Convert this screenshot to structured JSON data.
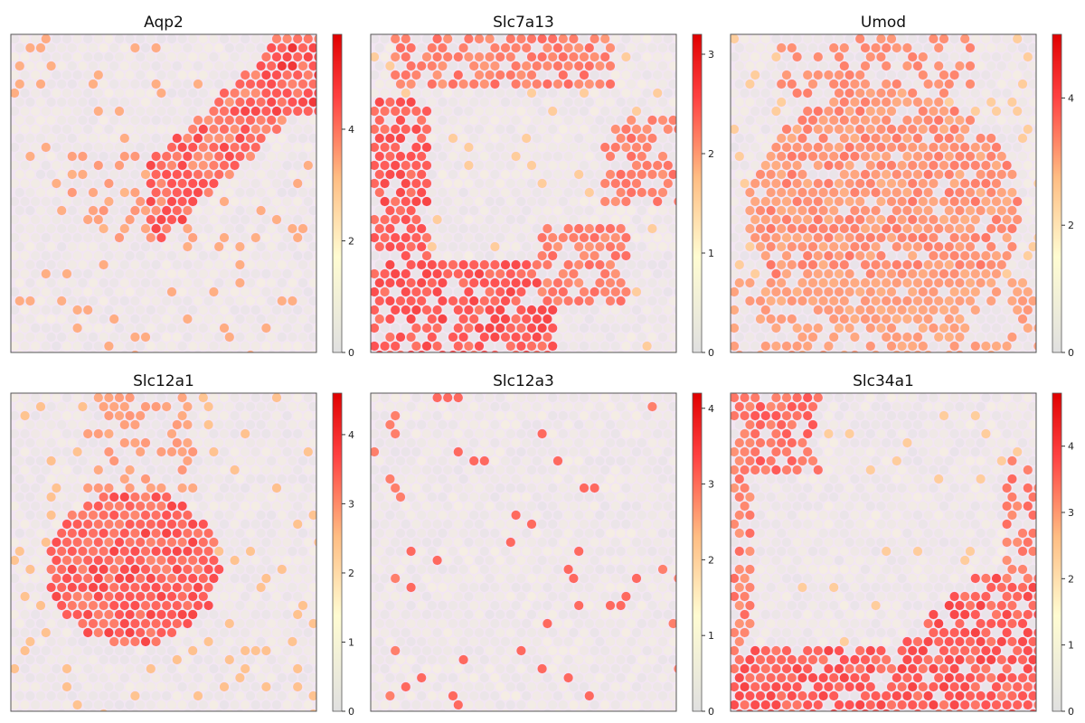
{
  "figure_title": "",
  "colormap": {
    "name": "grey-yellow-orange-red",
    "stops": [
      "#e0e0e0",
      "#fffcd2",
      "#ffbd83",
      "#ff4242",
      "#e00000"
    ]
  },
  "tissue_color": "#f3e6f3",
  "chart_data": [
    {
      "type": "heatmap",
      "title": "Aqp2",
      "colorbar": {
        "vmin": 0,
        "vmax": 5.7,
        "ticks": [
          0,
          2,
          4
        ],
        "tick_labels": [
          "0",
          "2",
          "4"
        ]
      },
      "pattern": "diagonal band running from top-right toward center-left, strongest near top-right"
    },
    {
      "type": "heatmap",
      "title": "Slc7a13",
      "colorbar": {
        "vmin": 0,
        "vmax": 3.2,
        "ticks": [
          0,
          1,
          2,
          3
        ],
        "tick_labels": [
          "0",
          "1",
          "2",
          "3"
        ]
      },
      "pattern": "ring around the tissue perimeter: top strip, left side, bottom band, right side"
    },
    {
      "type": "heatmap",
      "title": "Umod",
      "colorbar": {
        "vmin": 0,
        "vmax": 5.0,
        "ticks": [
          0,
          2,
          4
        ],
        "tick_labels": [
          "0",
          "2",
          "4"
        ]
      },
      "pattern": "broad central region with high expression"
    },
    {
      "type": "heatmap",
      "title": "Slc12a1",
      "colorbar": {
        "vmin": 0,
        "vmax": 4.6,
        "ticks": [
          0,
          1,
          2,
          3,
          4
        ],
        "tick_labels": [
          "0",
          "1",
          "2",
          "3",
          "4"
        ]
      },
      "pattern": "dense central-left blob with scattered high spots"
    },
    {
      "type": "heatmap",
      "title": "Slc12a3",
      "colorbar": {
        "vmin": 0,
        "vmax": 4.2,
        "ticks": [
          0,
          1,
          2,
          3,
          4
        ],
        "tick_labels": [
          "0",
          "1",
          "2",
          "3",
          "4"
        ]
      },
      "pattern": "mostly low expression with sparse scattered spots"
    },
    {
      "type": "heatmap",
      "title": "Slc34a1",
      "colorbar": {
        "vmin": 0,
        "vmax": 4.8,
        "ticks": [
          0,
          1,
          2,
          3,
          4
        ],
        "tick_labels": [
          "0",
          "1",
          "2",
          "3",
          "4"
        ]
      },
      "pattern": "top-left corner, left edge, bottom and bottom-right band"
    }
  ]
}
